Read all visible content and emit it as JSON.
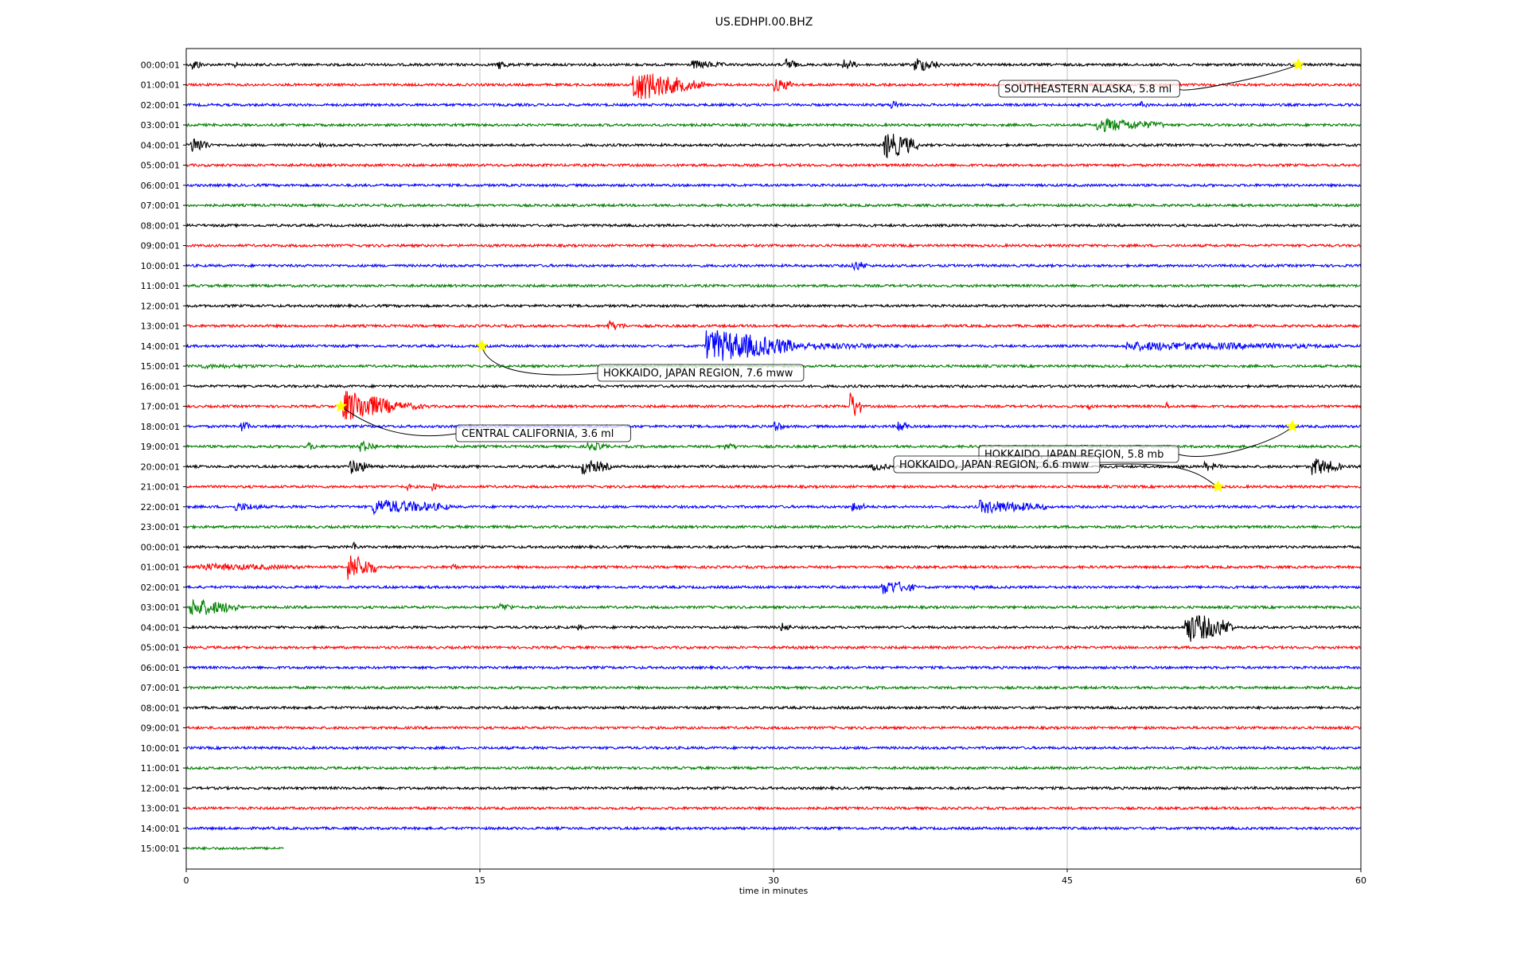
{
  "chart_data": {
    "type": "line",
    "title": "US.EDHPI.00.BHZ",
    "xlabel": "time in minutes",
    "ylabel": "",
    "xlim": [
      0,
      60
    ],
    "x_ticks": [
      "0",
      "15",
      "30",
      "45",
      "60"
    ],
    "grid": "vertical",
    "row_labels": [
      "00:00:01",
      "01:00:01",
      "02:00:01",
      "03:00:01",
      "04:00:01",
      "05:00:01",
      "06:00:01",
      "07:00:01",
      "08:00:01",
      "09:00:01",
      "10:00:01",
      "11:00:01",
      "12:00:01",
      "13:00:01",
      "14:00:01",
      "15:00:01",
      "16:00:01",
      "17:00:01",
      "18:00:01",
      "19:00:01",
      "20:00:01",
      "21:00:01",
      "22:00:01",
      "23:00:01",
      "00:00:01",
      "01:00:01",
      "02:00:01",
      "03:00:01",
      "04:00:01",
      "05:00:01",
      "06:00:01",
      "07:00:01",
      "08:00:01",
      "09:00:01",
      "10:00:01",
      "11:00:01",
      "12:00:01",
      "13:00:01",
      "14:00:01",
      "15:00:01"
    ],
    "series_colors": [
      "#000000",
      "#ff0000",
      "#0000ff",
      "#008000"
    ],
    "last_row_end_minute": 5,
    "events": [
      {
        "row": 0,
        "minute": 56.8,
        "label": "SOUTHEASTERN ALASKA, 5.8 ml"
      },
      {
        "row": 14,
        "minute": 15.1,
        "label": "HOKKAIDO, JAPAN REGION, 7.6 mww"
      },
      {
        "row": 17,
        "minute": 7.9,
        "label": "CENTRAL CALIFORNIA, 3.6 ml"
      },
      {
        "row": 18,
        "minute": 56.5,
        "label": "HOKKAIDO, JAPAN REGION, 5.8 mb"
      },
      {
        "row": 21,
        "minute": 52.7,
        "label": "HOKKAIDO, JAPAN REGION, 6.6 mww"
      }
    ],
    "bursts": [
      {
        "row": 0,
        "minute": 0.3,
        "dur": 0.6,
        "amp": 8
      },
      {
        "row": 0,
        "minute": 2.4,
        "dur": 0.3,
        "amp": 6
      },
      {
        "row": 0,
        "minute": 15.9,
        "dur": 0.6,
        "amp": 7
      },
      {
        "row": 0,
        "minute": 25.8,
        "dur": 1.8,
        "amp": 6
      },
      {
        "row": 0,
        "minute": 30.6,
        "dur": 0.6,
        "amp": 10
      },
      {
        "row": 0,
        "minute": 33.5,
        "dur": 0.8,
        "amp": 8
      },
      {
        "row": 0,
        "minute": 37.2,
        "dur": 1.3,
        "amp": 10
      },
      {
        "row": 1,
        "minute": 22.8,
        "dur": 2.5,
        "amp": 22
      },
      {
        "row": 1,
        "minute": 25.0,
        "dur": 1.5,
        "amp": 10
      },
      {
        "row": 1,
        "minute": 30.0,
        "dur": 1.2,
        "amp": 9
      },
      {
        "row": 1,
        "minute": 42.5,
        "dur": 4.0,
        "amp": 4
      },
      {
        "row": 2,
        "minute": 36.0,
        "dur": 0.6,
        "amp": 6
      },
      {
        "row": 2,
        "minute": 48.7,
        "dur": 0.5,
        "amp": 5
      },
      {
        "row": 3,
        "minute": 46.5,
        "dur": 3.5,
        "amp": 9
      },
      {
        "row": 4,
        "minute": 0.2,
        "dur": 1.0,
        "amp": 12
      },
      {
        "row": 4,
        "minute": 6.8,
        "dur": 0.3,
        "amp": 4
      },
      {
        "row": 4,
        "minute": 35.6,
        "dur": 1.8,
        "amp": 18
      },
      {
        "row": 10,
        "minute": 34.0,
        "dur": 0.8,
        "amp": 8
      },
      {
        "row": 13,
        "minute": 21.5,
        "dur": 1.0,
        "amp": 7
      },
      {
        "row": 14,
        "minute": 26.5,
        "dur": 4.5,
        "amp": 22
      },
      {
        "row": 14,
        "minute": 31.0,
        "dur": 6.5,
        "amp": 5
      },
      {
        "row": 14,
        "minute": 48.0,
        "dur": 11.0,
        "amp": 6
      },
      {
        "row": 15,
        "minute": 0.5,
        "dur": 6.0,
        "amp": 3
      },
      {
        "row": 17,
        "minute": 8.0,
        "dur": 2.5,
        "amp": 22
      },
      {
        "row": 17,
        "minute": 10.5,
        "dur": 2.0,
        "amp": 6
      },
      {
        "row": 17,
        "minute": 33.9,
        "dur": 0.6,
        "amp": 20
      },
      {
        "row": 17,
        "minute": 46.0,
        "dur": 0.3,
        "amp": 6
      },
      {
        "row": 17,
        "minute": 50.0,
        "dur": 0.2,
        "amp": 8
      },
      {
        "row": 18,
        "minute": 2.8,
        "dur": 0.5,
        "amp": 8
      },
      {
        "row": 18,
        "minute": 30.0,
        "dur": 0.5,
        "amp": 9
      },
      {
        "row": 18,
        "minute": 36.3,
        "dur": 0.6,
        "amp": 10
      },
      {
        "row": 19,
        "minute": 6.2,
        "dur": 0.5,
        "amp": 6
      },
      {
        "row": 19,
        "minute": 8.8,
        "dur": 1.0,
        "amp": 8
      },
      {
        "row": 19,
        "minute": 20.5,
        "dur": 1.2,
        "amp": 6
      },
      {
        "row": 19,
        "minute": 27.5,
        "dur": 0.8,
        "amp": 5
      },
      {
        "row": 20,
        "minute": 8.3,
        "dur": 1.2,
        "amp": 10
      },
      {
        "row": 20,
        "minute": 20.2,
        "dur": 1.5,
        "amp": 10
      },
      {
        "row": 20,
        "minute": 35.0,
        "dur": 1.0,
        "amp": 6
      },
      {
        "row": 20,
        "minute": 52.0,
        "dur": 1.0,
        "amp": 6
      },
      {
        "row": 20,
        "minute": 57.5,
        "dur": 1.5,
        "amp": 12
      },
      {
        "row": 21,
        "minute": 11.2,
        "dur": 0.3,
        "amp": 6
      },
      {
        "row": 21,
        "minute": 12.5,
        "dur": 0.5,
        "amp": 6
      },
      {
        "row": 22,
        "minute": 2.5,
        "dur": 1.5,
        "amp": 6
      },
      {
        "row": 22,
        "minute": 9.5,
        "dur": 4.0,
        "amp": 10
      },
      {
        "row": 22,
        "minute": 34.0,
        "dur": 0.8,
        "amp": 7
      },
      {
        "row": 22,
        "minute": 40.5,
        "dur": 3.5,
        "amp": 9
      },
      {
        "row": 24,
        "minute": 8.5,
        "dur": 0.3,
        "amp": 8
      },
      {
        "row": 25,
        "minute": 0.5,
        "dur": 6.0,
        "amp": 5
      },
      {
        "row": 25,
        "minute": 8.2,
        "dur": 1.5,
        "amp": 18
      },
      {
        "row": 25,
        "minute": 13.5,
        "dur": 0.5,
        "amp": 5
      },
      {
        "row": 26,
        "minute": 35.5,
        "dur": 1.8,
        "amp": 10
      },
      {
        "row": 26,
        "minute": 40.2,
        "dur": 0.2,
        "amp": 5
      },
      {
        "row": 27,
        "minute": 0.2,
        "dur": 2.5,
        "amp": 12
      },
      {
        "row": 27,
        "minute": 16.0,
        "dur": 0.8,
        "amp": 6
      },
      {
        "row": 28,
        "minute": 20.0,
        "dur": 0.3,
        "amp": 5
      },
      {
        "row": 28,
        "minute": 30.3,
        "dur": 0.6,
        "amp": 7
      },
      {
        "row": 28,
        "minute": 51.0,
        "dur": 2.5,
        "amp": 20
      }
    ]
  }
}
